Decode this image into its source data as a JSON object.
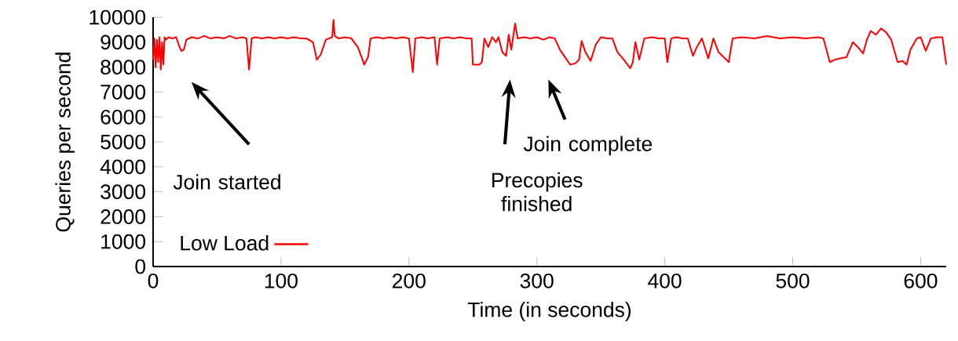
{
  "chart_data": {
    "type": "line",
    "xlabel": "Time (in seconds)",
    "ylabel": "Queries per second",
    "xlim": [
      0,
      620
    ],
    "ylim": [
      0,
      10000
    ],
    "xticks": [
      0,
      100,
      200,
      300,
      400,
      500,
      600
    ],
    "yticks": [
      0,
      1000,
      2000,
      3000,
      4000,
      5000,
      6000,
      7000,
      8000,
      9000,
      10000
    ],
    "grid": false,
    "legend": "bottom left",
    "marker": "none",
    "line_style": "solid",
    "annotations": [
      "Join started",
      "Precopies finished",
      "Join complete"
    ],
    "series": [
      {
        "name": "Low Load",
        "color": "#ff0000",
        "x": [
          0,
          1,
          2,
          3,
          4,
          5,
          6,
          7,
          8,
          9,
          10,
          12,
          15,
          18,
          20,
          22,
          24,
          26,
          30,
          35,
          40,
          45,
          50,
          55,
          60,
          65,
          70,
          73,
          75,
          77,
          80,
          85,
          90,
          95,
          100,
          105,
          110,
          115,
          120,
          125,
          128,
          131,
          135,
          140,
          141,
          142,
          145,
          150,
          155,
          160,
          163,
          165,
          168,
          170,
          175,
          180,
          185,
          190,
          195,
          200,
          203,
          205,
          210,
          215,
          220,
          222,
          224,
          230,
          235,
          240,
          245,
          249,
          250,
          255,
          257,
          259,
          262,
          265,
          268,
          270,
          273,
          276,
          278,
          280,
          283,
          285,
          290,
          295,
          300,
          305,
          310,
          314,
          318,
          322,
          326,
          330,
          333,
          335,
          338,
          342,
          346,
          350,
          355,
          359,
          363,
          368,
          373,
          375,
          377,
          380,
          384,
          390,
          395,
          400,
          402,
          405,
          409,
          414,
          418,
          422,
          425,
          429,
          434,
          438,
          442,
          446,
          450,
          453,
          460,
          470,
          480,
          490,
          500,
          510,
          520,
          524,
          529,
          533,
          537,
          542,
          547,
          551,
          555,
          558,
          561,
          565,
          569,
          573,
          577,
          582,
          586,
          589,
          592,
          597,
          600,
          604,
          608,
          613,
          617,
          620
        ],
        "values": [
          8300,
          9150,
          8000,
          9100,
          8200,
          9200,
          7900,
          9000,
          8100,
          9200,
          9100,
          9200,
          9150,
          9200,
          8900,
          8650,
          8700,
          9100,
          9200,
          9150,
          9250,
          9150,
          9200,
          9150,
          9250,
          9150,
          9200,
          9150,
          7900,
          9150,
          9200,
          9150,
          9200,
          9150,
          9200,
          9150,
          9200,
          9150,
          9150,
          9000,
          8300,
          8500,
          9100,
          9200,
          9900,
          9250,
          9150,
          9200,
          9150,
          8800,
          8400,
          8100,
          8400,
          9150,
          9200,
          9150,
          9200,
          9150,
          9200,
          9150,
          7800,
          9150,
          9200,
          9150,
          9200,
          8100,
          9150,
          9200,
          9150,
          9200,
          9150,
          9150,
          8100,
          8100,
          8200,
          9150,
          8800,
          9200,
          9000,
          9200,
          8600,
          8450,
          9300,
          8700,
          9750,
          9150,
          9200,
          9150,
          9200,
          9100,
          9200,
          9150,
          8700,
          8400,
          8100,
          8150,
          8300,
          9050,
          8600,
          8250,
          8900,
          9200,
          9150,
          9150,
          8600,
          8300,
          7950,
          8200,
          9000,
          8300,
          9150,
          9200,
          9150,
          9150,
          8200,
          9150,
          9200,
          9150,
          9150,
          8450,
          8800,
          9150,
          8350,
          9150,
          8600,
          8400,
          8200,
          9150,
          9200,
          9150,
          9250,
          9150,
          9200,
          9150,
          9200,
          9150,
          8200,
          8300,
          8350,
          8400,
          9000,
          8800,
          8550,
          9100,
          9450,
          9300,
          9550,
          9400,
          9100,
          8200,
          8250,
          8100,
          8700,
          9150,
          9200,
          8650,
          9150,
          9200,
          9200,
          8100
        ]
      }
    ]
  }
}
